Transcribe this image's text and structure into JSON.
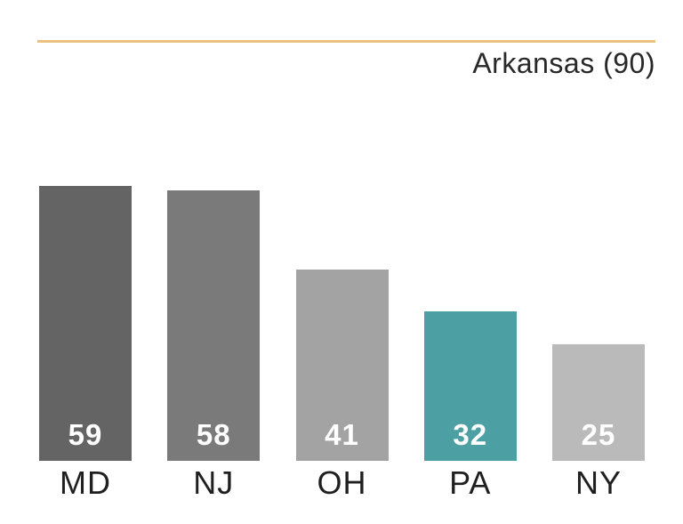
{
  "header": {
    "title": "Arkansas (90)"
  },
  "chart_data": {
    "type": "bar",
    "title": "Arkansas (90)",
    "categories": [
      "MD",
      "NJ",
      "OH",
      "PA",
      "NY"
    ],
    "values": [
      59,
      58,
      41,
      32,
      25
    ],
    "reference": {
      "label": "Arkansas",
      "value": 90
    },
    "xlabel": "",
    "ylabel": "",
    "ylim": [
      0,
      90
    ],
    "grid": false,
    "legend_position": "none",
    "bar_colors": [
      "#646464",
      "#7a7a7a",
      "#a3a3a3",
      "#4ca0a4",
      "#bababa"
    ],
    "highlight_color": "#4ca0a4",
    "value_label_color": "#ffffff",
    "reference_line_color": "#eac17e"
  }
}
